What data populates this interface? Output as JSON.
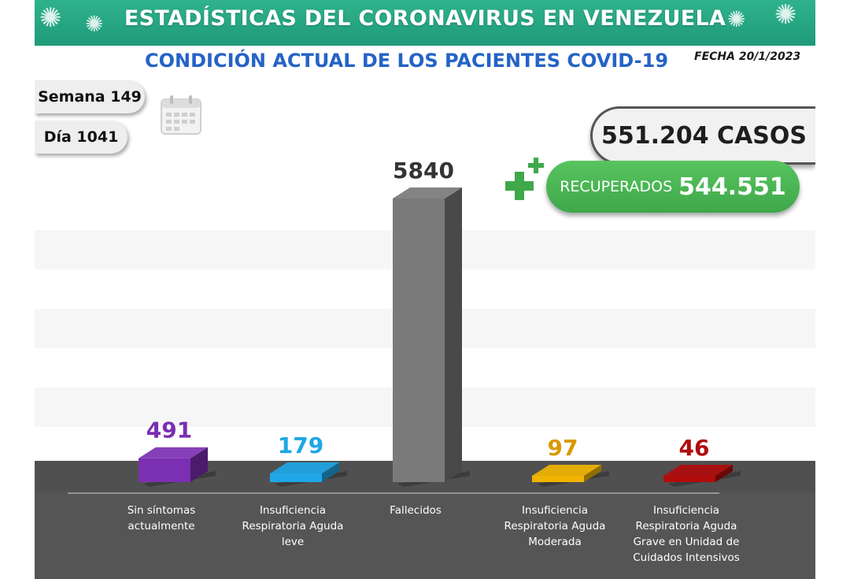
{
  "header": {
    "title": "ESTADÍSTICAS DEL CORONAVIRUS EN VENEZUELA",
    "subtitle": "CONDICIÓN ACTUAL DE LOS PACIENTES COVID-19",
    "date": "FECHA 20/1/2023"
  },
  "counters": {
    "week": "Semana 149",
    "day": "Día 1041"
  },
  "totals": {
    "cases": "551.204 CASOS",
    "recovered_label": "RECUPERADOS",
    "recovered_value": "544.551"
  },
  "icons": [
    "virus-icon",
    "calendar-icon",
    "plus-icon"
  ],
  "colors": {
    "header": "#23a27f",
    "subtitle": "#2563c6",
    "recovered": "#4bb552",
    "floor": "#555555"
  },
  "chart_data": {
    "type": "bar",
    "title": "CONDICIÓN ACTUAL DE LOS PACIENTES COVID-19",
    "categories": [
      [
        "Sin síntomas",
        "actualmente"
      ],
      [
        "Insuficiencia",
        "Respiratoria Aguda",
        "leve"
      ],
      [
        "Fallecidos"
      ],
      [
        "Insuficiencia",
        "Respiratoria Aguda",
        "Moderada"
      ],
      [
        "Insuficiencia",
        "Respiratoria Aguda",
        "Grave en Unidad de",
        "Cuidados Intensivos"
      ]
    ],
    "values": [
      491,
      179,
      5840,
      97,
      46
    ],
    "value_labels": [
      "491",
      "179",
      "5840",
      "97",
      "46"
    ],
    "bar_colors": [
      "#7b2fb3",
      "#1fa6e6",
      "#7a7a7a",
      "#f0b400",
      "#b00c0c"
    ],
    "label_colors": [
      "#7b2fb3",
      "#1fa6e6",
      "#333333",
      "#d99a00",
      "#b00c0c"
    ],
    "ylim": [
      0,
      5840
    ],
    "grid": false
  }
}
